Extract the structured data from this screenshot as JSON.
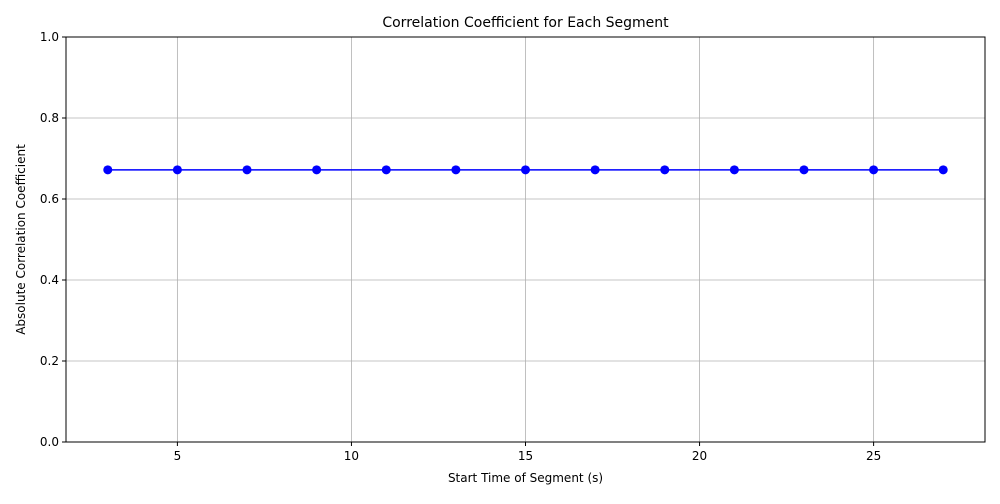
{
  "chart_data": {
    "type": "line",
    "title": "Correlation Coefficient for Each Segment",
    "xlabel": "Start Time of Segment (s)",
    "ylabel": "Absolute Correlation Coefficient",
    "xlim": [
      1.8,
      28.2
    ],
    "ylim": [
      0.0,
      1.0
    ],
    "xticks": [
      5,
      10,
      15,
      20,
      25
    ],
    "yticks": [
      0.0,
      0.2,
      0.4,
      0.6,
      0.8,
      1.0
    ],
    "xtick_labels": [
      "5",
      "10",
      "15",
      "20",
      "25"
    ],
    "ytick_labels": [
      "0.0",
      "0.2",
      "0.4",
      "0.6",
      "0.8",
      "1.0"
    ],
    "grid": true,
    "legend": "none",
    "series": [
      {
        "color": "#0000ff",
        "marker": "circle",
        "x": [
          3,
          5,
          7,
          9,
          11,
          13,
          15,
          17,
          19,
          21,
          23,
          25,
          27
        ],
        "y": [
          0.672,
          0.672,
          0.672,
          0.672,
          0.672,
          0.672,
          0.672,
          0.672,
          0.672,
          0.672,
          0.672,
          0.672,
          0.672
        ]
      }
    ]
  }
}
